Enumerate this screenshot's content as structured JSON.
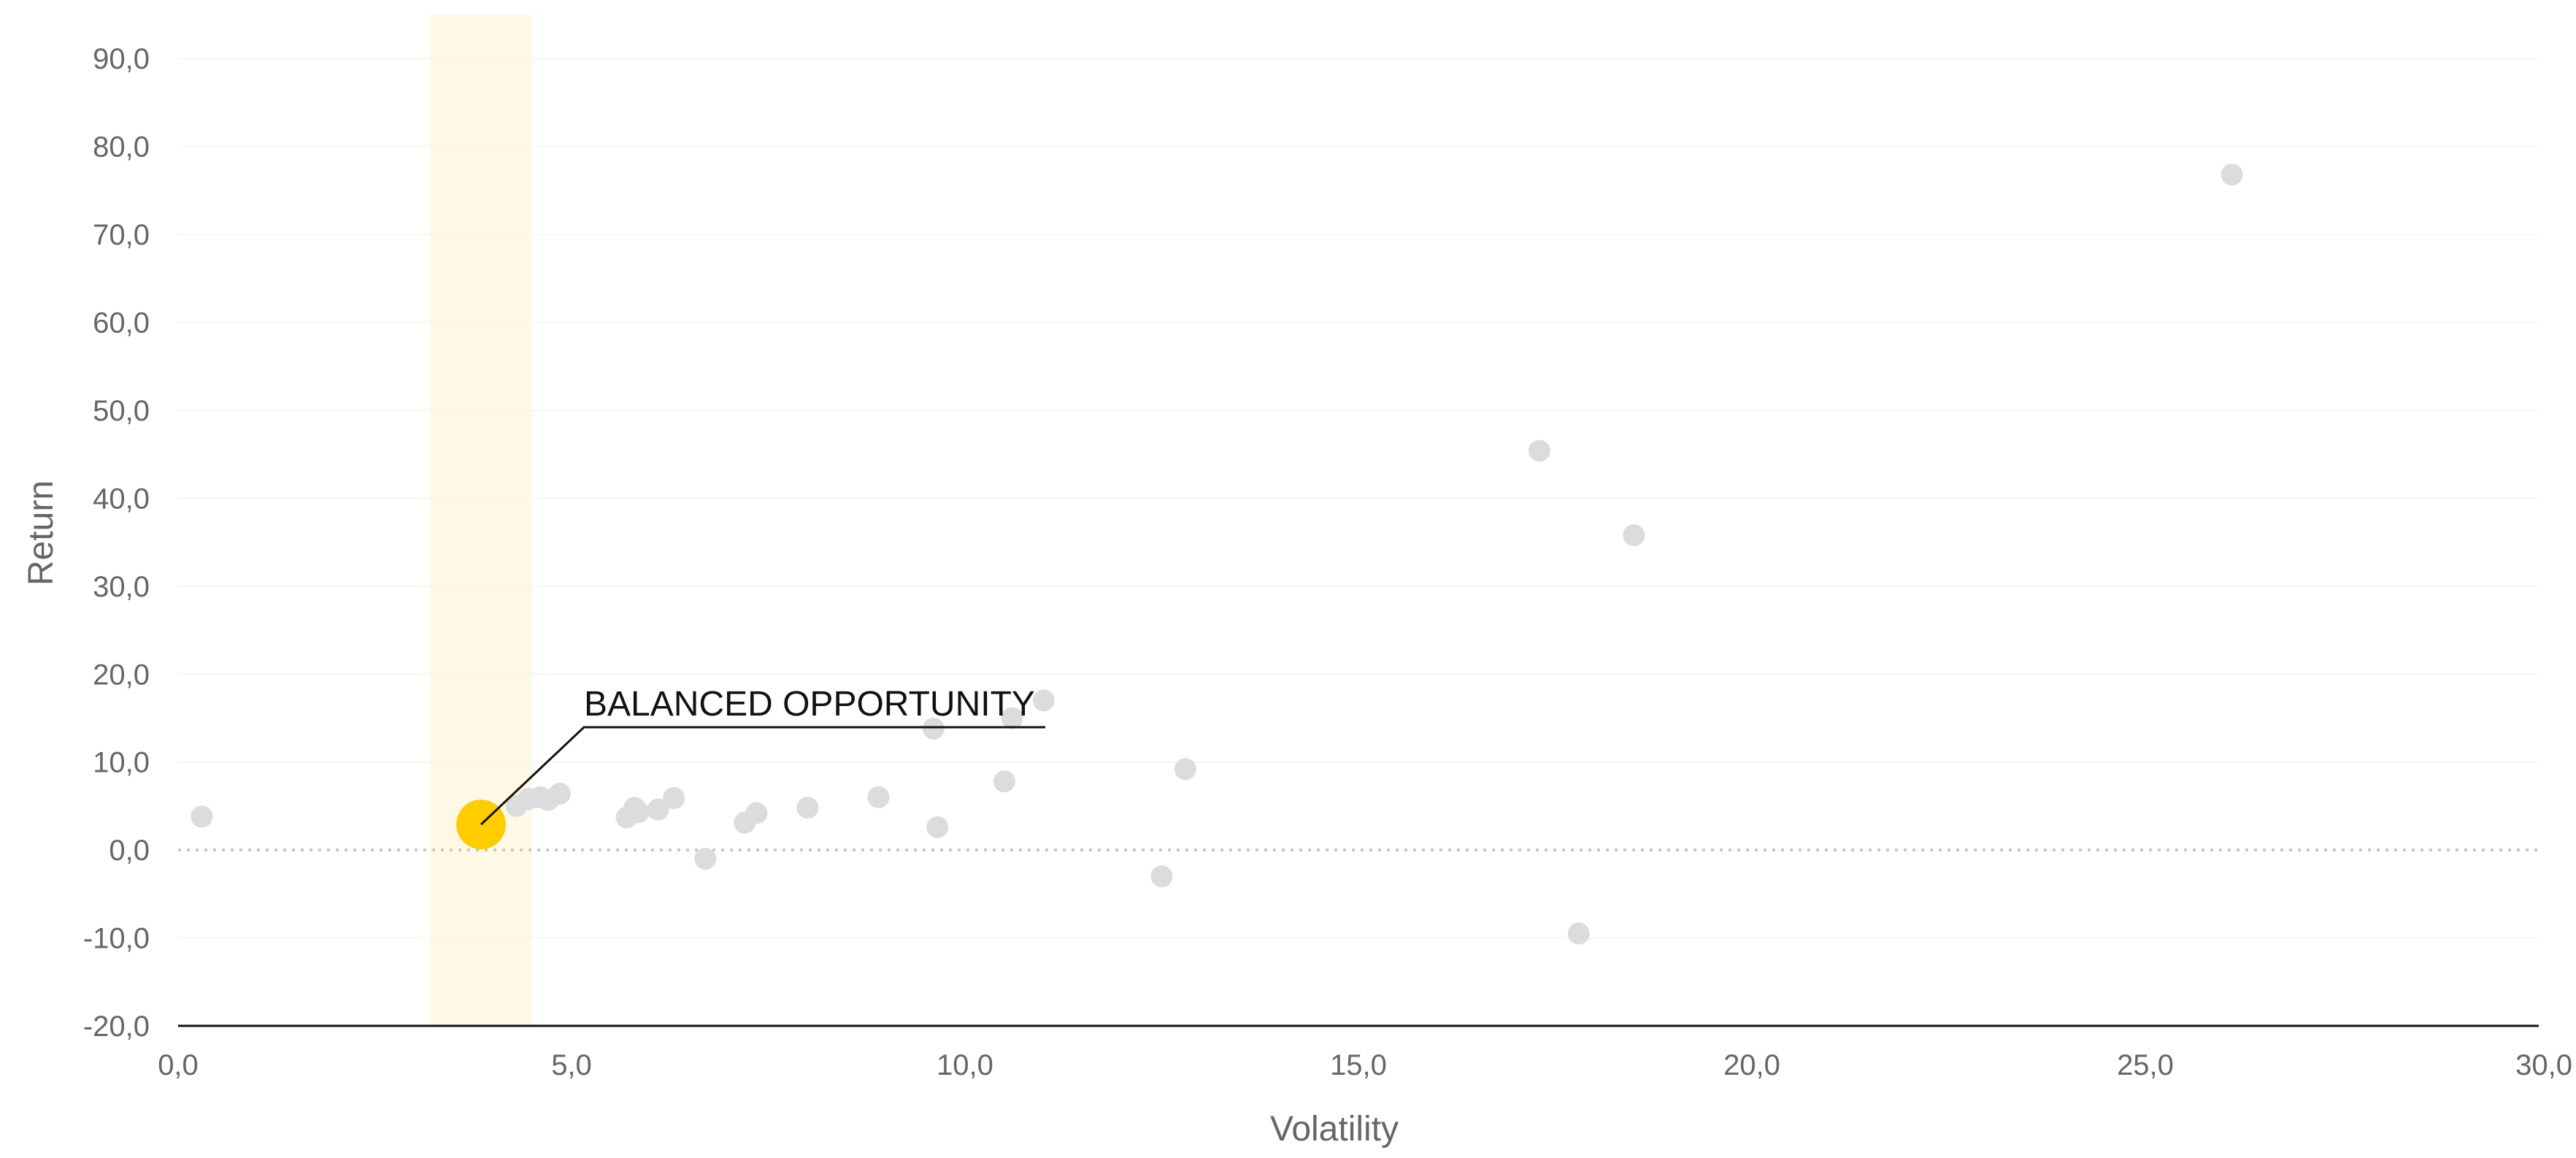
{
  "chart_data": {
    "type": "scatter",
    "title": "",
    "xlabel": "Volatility",
    "ylabel": "Return",
    "xlim": [
      0,
      30
    ],
    "ylim": [
      -20,
      95
    ],
    "x_ticks": [
      "0,0",
      "5,0",
      "10,0",
      "15,0",
      "20,0",
      "25,0",
      "30,0"
    ],
    "y_ticks": [
      "-20,0",
      "-10,0",
      "0,0",
      "10,0",
      "20,0",
      "30,0",
      "40,0",
      "50,0",
      "60,0",
      "70,0",
      "80,0",
      "90,0"
    ],
    "grid": true,
    "legend": "none",
    "zero_line": "dotted",
    "highlight_band": {
      "x_range": [
        3.2,
        4.5
      ],
      "color": "#FFF8E5"
    },
    "series": [
      {
        "color": "#DCDCDC",
        "points": [
          {
            "x": 0.3,
            "y": 3.8
          },
          {
            "x": 4.3,
            "y": 5.0
          },
          {
            "x": 4.45,
            "y": 5.8
          },
          {
            "x": 4.6,
            "y": 6.0
          },
          {
            "x": 4.7,
            "y": 5.7
          },
          {
            "x": 4.85,
            "y": 6.4
          },
          {
            "x": 5.7,
            "y": 3.7
          },
          {
            "x": 5.8,
            "y": 4.8
          },
          {
            "x": 5.85,
            "y": 4.3
          },
          {
            "x": 6.1,
            "y": 4.6
          },
          {
            "x": 6.3,
            "y": 5.9
          },
          {
            "x": 6.7,
            "y": -1.0
          },
          {
            "x": 7.2,
            "y": 3.1
          },
          {
            "x": 7.35,
            "y": 4.2
          },
          {
            "x": 8.0,
            "y": 4.8
          },
          {
            "x": 8.9,
            "y": 6.0
          },
          {
            "x": 9.6,
            "y": 13.8
          },
          {
            "x": 9.65,
            "y": 2.6
          },
          {
            "x": 10.5,
            "y": 7.8
          },
          {
            "x": 10.6,
            "y": 15.0
          },
          {
            "x": 11.0,
            "y": 17.0
          },
          {
            "x": 12.5,
            "y": -3.0
          },
          {
            "x": 12.8,
            "y": 9.2
          },
          {
            "x": 17.3,
            "y": 45.4
          },
          {
            "x": 17.8,
            "y": -9.5
          },
          {
            "x": 18.5,
            "y": 35.8
          },
          {
            "x": 26.1,
            "y": 76.8
          }
        ]
      },
      {
        "color": "#FFCC00",
        "points": [
          {
            "x": 3.85,
            "y": 2.9
          }
        ]
      }
    ],
    "annotations": [
      {
        "text": "BALANCED OPPORTUNITY",
        "x": 3.85,
        "y": 2.9
      }
    ]
  }
}
